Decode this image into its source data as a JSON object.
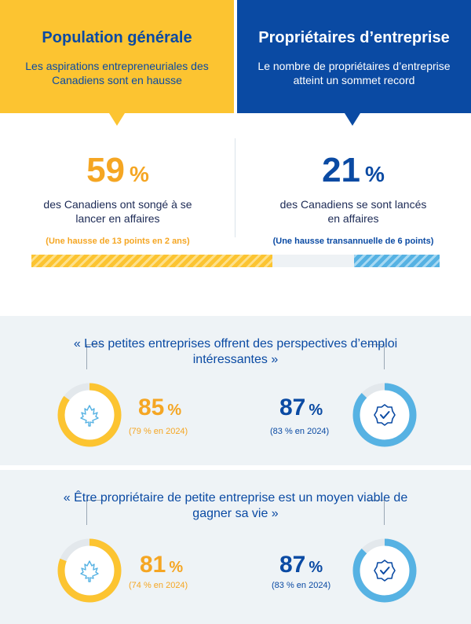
{
  "header": {
    "left": {
      "title": "Population générale",
      "subtitle": "Les aspirations entrepreneuriales des Canadiens sont en hausse"
    },
    "right": {
      "title": "Propriétaires d’entreprise",
      "subtitle": "Le nombre de propriétaires d’entreprise atteint un sommet record"
    }
  },
  "stats": {
    "left": {
      "value": "59",
      "unit": "%",
      "description": "des Canadiens ont songé à se lancer en affaires",
      "note": "(Une hausse de 13 points en 2 ans)"
    },
    "right": {
      "value": "21",
      "unit": "%",
      "description": "des Canadiens se sont lancés en affaires",
      "note": "(Une hausse transannuelle de 6 points)"
    }
  },
  "bar": {
    "left_value": 59,
    "right_value": 21,
    "total": 100
  },
  "panels": [
    {
      "quote": "« Les petites entreprises offrent des perspectives d’emploi intéressantes »",
      "left": {
        "value": "85",
        "unit": "%",
        "value_num": 85,
        "previous": "(79 % en 2024)",
        "icon": "maple-leaf-icon"
      },
      "right": {
        "value": "87",
        "unit": "%",
        "value_num": 87,
        "previous": "(83 % en 2024)",
        "icon": "check-badge-icon"
      }
    },
    {
      "quote": "« Être propriétaire de petite entreprise est un moyen viable de gagner sa vie »",
      "left": {
        "value": "81",
        "unit": "%",
        "value_num": 81,
        "previous": "(74 % en 2024)",
        "icon": "maple-leaf-icon"
      },
      "right": {
        "value": "87",
        "unit": "%",
        "value_num": 87,
        "previous": "(83 % en 2024)",
        "icon": "check-badge-icon"
      }
    }
  ],
  "colors": {
    "yellow": "#fcc431",
    "orange": "#f5a623",
    "blue": "#0a4aa3",
    "lightblue": "#56b2e3",
    "panel": "#eef3f6"
  }
}
